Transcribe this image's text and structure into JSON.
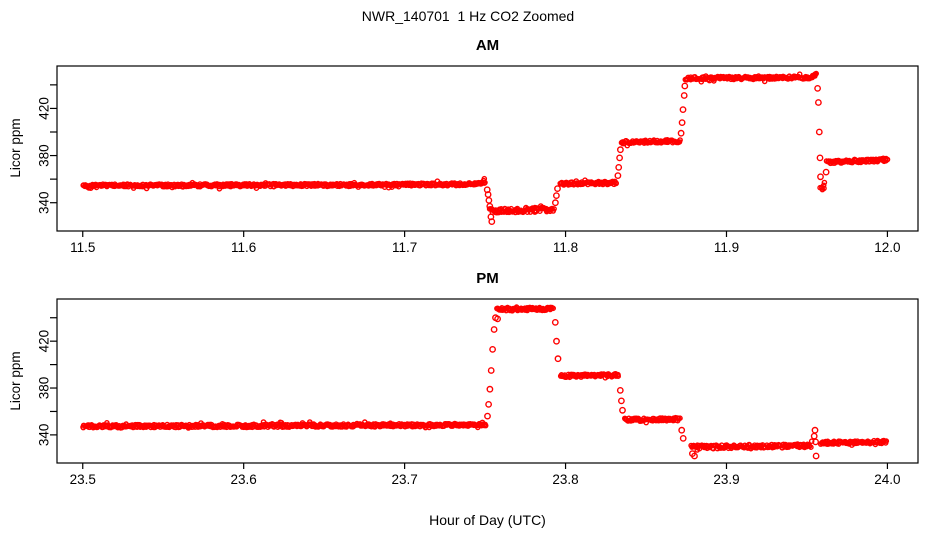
{
  "page": {
    "title": "NWR_140701  1 Hz CO2 Zoomed",
    "xlabel": "Hour of Day (UTC)"
  },
  "colors": {
    "points": "#FF0000",
    "axes": "#000000",
    "background": "#FFFFFF"
  },
  "chart_data": [
    {
      "type": "scatter",
      "title": "AM",
      "ylabel": "Licor ppm",
      "marker": "open-circle",
      "color": "#FF0000",
      "grid": false,
      "legend": "none",
      "xlim": [
        11.484,
        12.019
      ],
      "ylim": [
        316,
        456
      ],
      "xticks": [
        11.5,
        11.6,
        11.7,
        11.8,
        11.9,
        12.0
      ],
      "yticks": [
        340,
        360,
        380,
        400,
        420,
        440
      ],
      "ytick_labeled": [
        340,
        380,
        420
      ],
      "seed": 42,
      "series_segments": [
        {
          "points": [
            [
              11.5,
              354.5
            ],
            [
              11.69,
              355.2
            ],
            [
              11.744,
              355.8
            ],
            [
              11.7505,
              358.2
            ]
          ],
          "jitter": 1.2
        },
        {
          "points": [
            [
              11.753,
              333.0
            ],
            [
              11.7625,
              333.2
            ],
            [
              11.793,
              334.6
            ]
          ],
          "jitter": 1.9
        },
        {
          "points": [
            [
              11.7965,
              356.2
            ],
            [
              11.8317,
              356.9
            ]
          ],
          "jitter": 1.3
        },
        {
          "points": [
            [
              11.8345,
              391.2
            ],
            [
              11.871,
              392.3
            ]
          ],
          "jitter": 1.3
        },
        {
          "points": [
            [
              11.8745,
              445.6
            ],
            [
              11.948,
              446.2
            ],
            [
              11.953,
              446.6
            ],
            [
              11.956,
              449.0
            ]
          ],
          "jitter": 1.3
        },
        {
          "points": [
            [
              11.9585,
              354.5
            ],
            [
              11.9602,
              352.2
            ],
            [
              11.9615,
              356.5
            ]
          ],
          "jitter": 1.8
        },
        {
          "points": [
            [
              11.9625,
              374.3
            ],
            [
              12.0,
              376.3
            ]
          ],
          "jitter": 1.2
        }
      ],
      "transition_points": [
        [
          11.7513,
          351
        ],
        [
          11.7519,
          347
        ],
        [
          11.7524,
          342
        ],
        [
          11.7529,
          337
        ],
        [
          11.7536,
          328
        ],
        [
          11.7542,
          324
        ],
        [
          11.7937,
          340
        ],
        [
          11.7943,
          346
        ],
        [
          11.795,
          352
        ],
        [
          11.8325,
          363
        ],
        [
          11.833,
          370
        ],
        [
          11.8336,
          378
        ],
        [
          11.8341,
          385
        ],
        [
          11.8718,
          399
        ],
        [
          11.8724,
          408
        ],
        [
          11.873,
          419
        ],
        [
          11.8737,
          431
        ],
        [
          11.8741,
          439
        ],
        [
          11.9566,
          437
        ],
        [
          11.9571,
          425
        ],
        [
          11.9577,
          400
        ],
        [
          11.9581,
          378
        ],
        [
          11.9584,
          362
        ],
        [
          11.9619,
          366
        ]
      ]
    },
    {
      "type": "scatter",
      "title": "PM",
      "ylabel": "Licor ppm",
      "marker": "open-circle",
      "color": "#FF0000",
      "grid": false,
      "legend": "none",
      "xlim": [
        23.484,
        24.019
      ],
      "ylim": [
        316,
        456
      ],
      "xticks": [
        23.5,
        23.6,
        23.7,
        23.8,
        23.9,
        24.0
      ],
      "yticks": [
        340,
        360,
        380,
        400,
        420,
        440
      ],
      "ytick_labeled": [
        340,
        380,
        420
      ],
      "seed": 1234,
      "series_segments": [
        {
          "points": [
            [
              23.5,
              347.3
            ],
            [
              23.7,
              348.2
            ],
            [
              23.7505,
              348.7
            ]
          ],
          "jitter": 1.3
        },
        {
          "points": [
            [
              23.7575,
              447.2
            ],
            [
              23.789,
              447.6
            ],
            [
              23.7925,
              448.1
            ]
          ],
          "jitter": 1.4
        },
        {
          "points": [
            [
              23.797,
              390.3
            ],
            [
              23.833,
              390.9
            ]
          ],
          "jitter": 1.3
        },
        {
          "points": [
            [
              23.8365,
              352.8
            ],
            [
              23.871,
              353.4
            ]
          ],
          "jitter": 1.3
        },
        {
          "points": [
            [
              23.878,
              329.6
            ],
            [
              23.953,
              330.9
            ]
          ],
          "jitter": 1.6
        },
        {
          "points": [
            [
              23.9585,
              333.2
            ],
            [
              23.999,
              333.9
            ]
          ],
          "jitter": 1.3
        }
      ],
      "transition_points": [
        [
          23.7515,
          356
        ],
        [
          23.7522,
          366
        ],
        [
          23.753,
          379
        ],
        [
          23.7538,
          395
        ],
        [
          23.7547,
          413
        ],
        [
          23.7556,
          430
        ],
        [
          23.7565,
          440
        ],
        [
          23.7578,
          439
        ],
        [
          23.7936,
          436
        ],
        [
          23.7944,
          420
        ],
        [
          23.7953,
          405
        ],
        [
          23.834,
          378
        ],
        [
          23.8347,
          369
        ],
        [
          23.8354,
          361
        ],
        [
          23.8722,
          344
        ],
        [
          23.8731,
          337
        ],
        [
          23.8788,
          324
        ],
        [
          23.8801,
          322
        ],
        [
          23.9545,
          339
        ],
        [
          23.955,
          344
        ],
        [
          23.9554,
          334
        ],
        [
          23.9557,
          322
        ]
      ]
    }
  ]
}
